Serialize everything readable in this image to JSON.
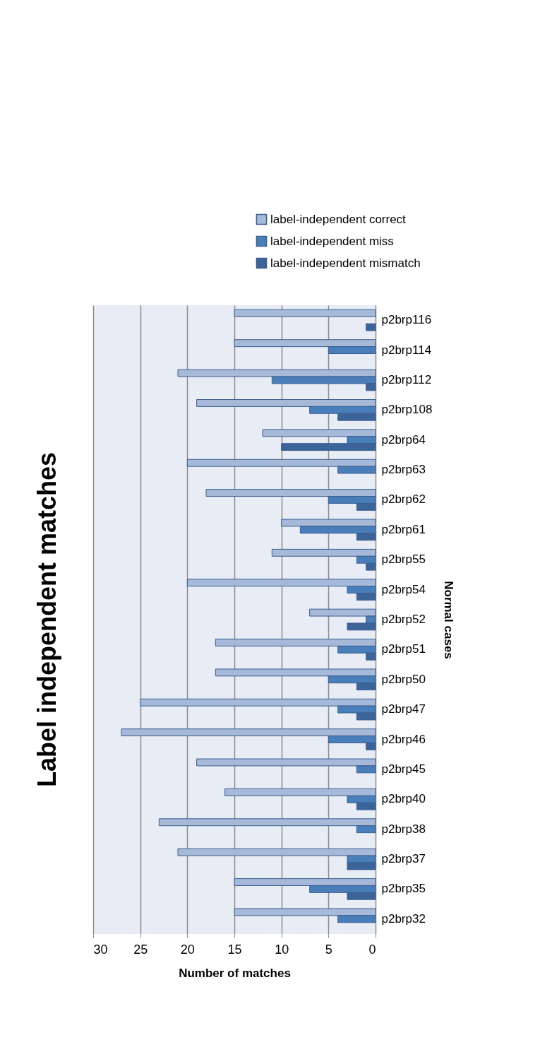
{
  "chart_data": {
    "type": "bar",
    "orientation": "horizontal",
    "title": "Label independent matches",
    "xlabel": "Number of matches",
    "ylabel": "Normal cases",
    "categories": [
      "p2brp116",
      "p2brp114",
      "p2brp112",
      "p2brp108",
      "p2brp64",
      "p2brp63",
      "p2brp62",
      "p2brp61",
      "p2brp55",
      "p2brp54",
      "p2brp52",
      "p2brp51",
      "p2brp50",
      "p2brp47",
      "p2brp46",
      "p2brp45",
      "p2brp40",
      "p2brp38",
      "p2brp37",
      "p2brp35",
      "p2brp32"
    ],
    "series": [
      {
        "name": "label-independent correct",
        "color": "#a7b9d8",
        "values": [
          15,
          15,
          21,
          19,
          12,
          20,
          18,
          10,
          11,
          20,
          7,
          17,
          17,
          25,
          27,
          19,
          16,
          23,
          21,
          15,
          15
        ]
      },
      {
        "name": "label-independent miss",
        "color": "#4a7ebb",
        "values": [
          0,
          5,
          11,
          7,
          3,
          4,
          5,
          8,
          2,
          3,
          1,
          4,
          5,
          4,
          5,
          2,
          3,
          2,
          3,
          7,
          4
        ]
      },
      {
        "name": "label-independent mismatch",
        "color": "#3c6499",
        "values": [
          1,
          0,
          1,
          4,
          10,
          0,
          2,
          2,
          1,
          2,
          3,
          1,
          2,
          2,
          1,
          0,
          2,
          0,
          3,
          3,
          0
        ]
      }
    ],
    "xlim": [
      30,
      0
    ],
    "xticks": [
      0,
      5,
      10,
      15,
      20,
      25,
      30
    ],
    "grid": "x",
    "legend": "top"
  }
}
